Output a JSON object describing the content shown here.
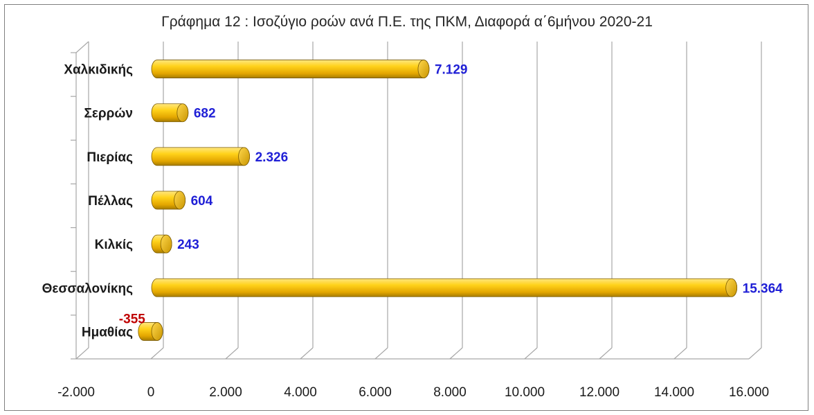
{
  "chart_data": {
    "type": "bar",
    "orientation": "horizontal",
    "title": "Γράφημα 12 : Ισοζύγιο ροών ανά Π.Ε. της ΠΚΜ, Διαφορά α΄6μήνου 2020-21",
    "categories": [
      "Χαλκιδικής",
      "Σερρών",
      "Πιερίας",
      "Πέλλας",
      "Κιλκίς",
      "Θεσσαλονίκης",
      "Ημαθίας"
    ],
    "values": [
      7129,
      682,
      2326,
      604,
      243,
      15364,
      -355
    ],
    "data_labels": [
      "7.129",
      "682",
      "2.326",
      "604",
      "243",
      "15.364",
      "-355"
    ],
    "xlim": [
      -2000,
      16000
    ],
    "xticks": [
      -2000,
      0,
      2000,
      4000,
      6000,
      8000,
      10000,
      12000,
      14000,
      16000
    ],
    "xtick_labels": [
      "-2.000",
      "0",
      "2.000",
      "4.000",
      "6.000",
      "8.000",
      "10.000",
      "12.000",
      "14.000",
      "16.000"
    ],
    "grid": true,
    "legend": "none",
    "colors": {
      "bar_fill": "#f2b800",
      "bar_highlight": "#ffe36a",
      "bar_edge": "#7a5a00",
      "positive_label": "#1f1fd6",
      "negative_label": "#c00000",
      "grid": "#a6a6a6"
    }
  }
}
